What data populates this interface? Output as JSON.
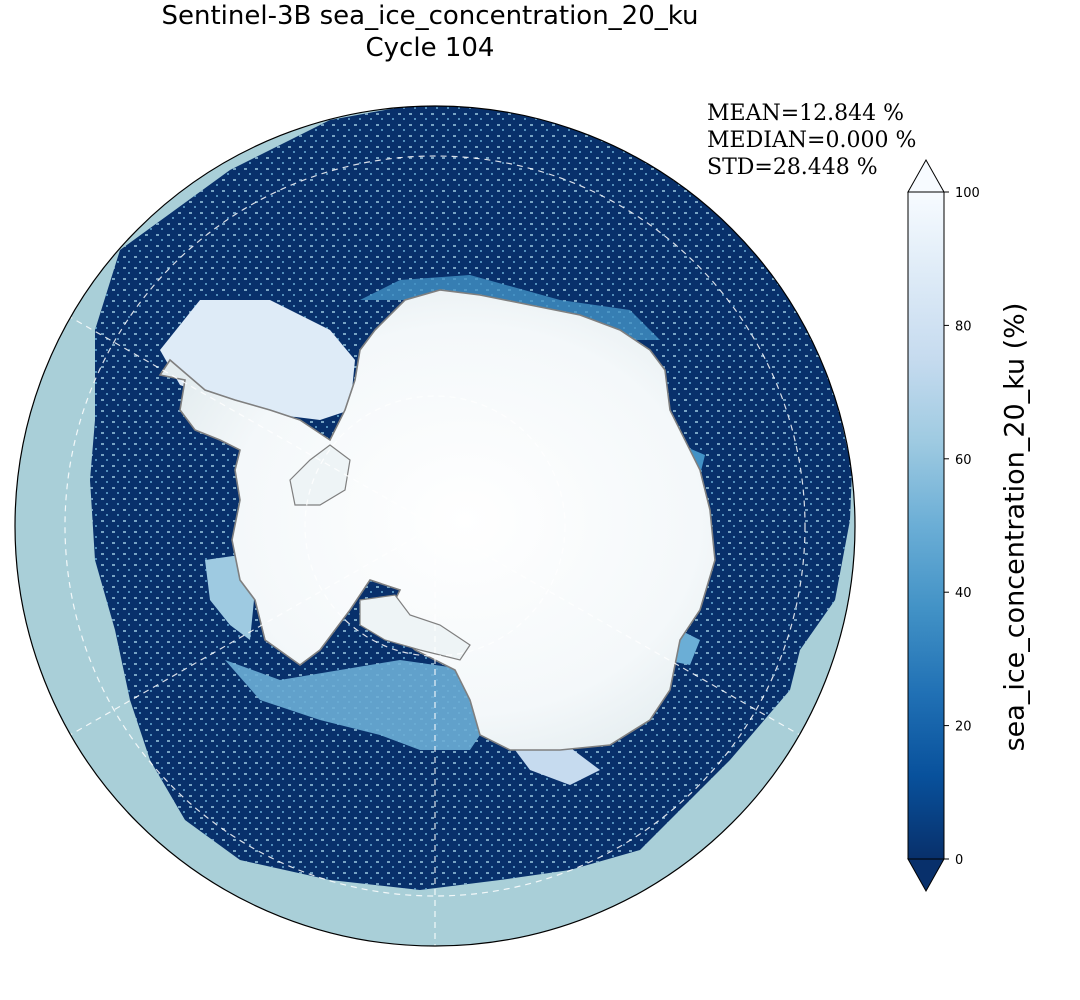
{
  "title": {
    "line1": "Sentinel-3B sea_ice_concentration_20_ku",
    "line2": "Cycle 104"
  },
  "stats": {
    "mean": "MEAN=12.844 %",
    "median": "MEDIAN=0.000 %",
    "std": "STD=28.448 %"
  },
  "colorbar": {
    "label": "sea_ice_concentration_20_ku (%)",
    "ticks": [
      "0",
      "20",
      "40",
      "60",
      "80",
      "100"
    ],
    "min": 0,
    "max": 100,
    "extend": "both",
    "colormap": "Blues_r",
    "colors": [
      "#08306b",
      "#08519c",
      "#2171b5",
      "#4292c6",
      "#6baed6",
      "#9ecae1",
      "#c6dbef",
      "#deebf7",
      "#f7fbff"
    ]
  },
  "map": {
    "projection": "south-polar-stereographic",
    "background_ocean": "#a9cfd8",
    "open_water_color": "#08306b",
    "land_color": "#ffffff",
    "coastline_color": "#7f7f7f",
    "gridlines": "dashed white"
  }
}
